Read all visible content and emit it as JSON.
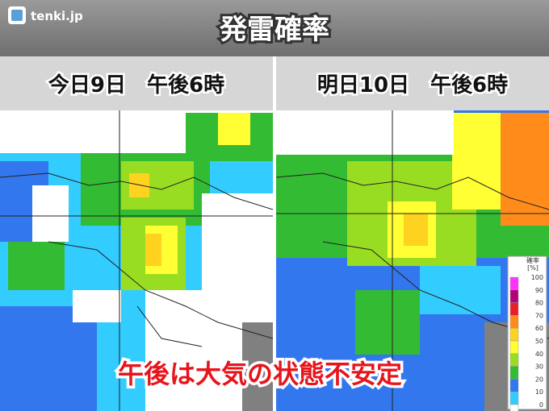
{
  "header": {
    "logo": "tenki.jp",
    "title": "発雷確率"
  },
  "panels": [
    {
      "label": "今日9日　午後6時"
    },
    {
      "label": "明日10日　午後6時"
    }
  ],
  "legend": {
    "title": "確率",
    "unit": "[%]",
    "ticks": [
      100,
      90,
      80,
      70,
      60,
      50,
      40,
      30,
      20,
      10,
      0
    ],
    "colors": [
      "#ff33ff",
      "#b4007a",
      "#e5202a",
      "#ff8c1a",
      "#ffd21f",
      "#ffff33",
      "#99dd22",
      "#33bb33",
      "#3377ee",
      "#33ccff",
      "#ffffff"
    ]
  },
  "caption": "午後は大気の状態不安定"
}
